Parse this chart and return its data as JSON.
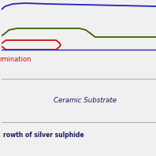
{
  "fig_width": 1.98,
  "fig_height": 1.98,
  "dpi": 100,
  "bg_color": "#f0f0f0",
  "blue_color": "#2222bb",
  "green_color": "#336600",
  "red_color": "#cc1111",
  "dark_navy": "#1a1a5e",
  "ceramic_text": "Ceramic Substrate",
  "termination_text": "rmination",
  "bottom_text": "rowth of silver sulphide",
  "gray_line": "#aaaaaa"
}
